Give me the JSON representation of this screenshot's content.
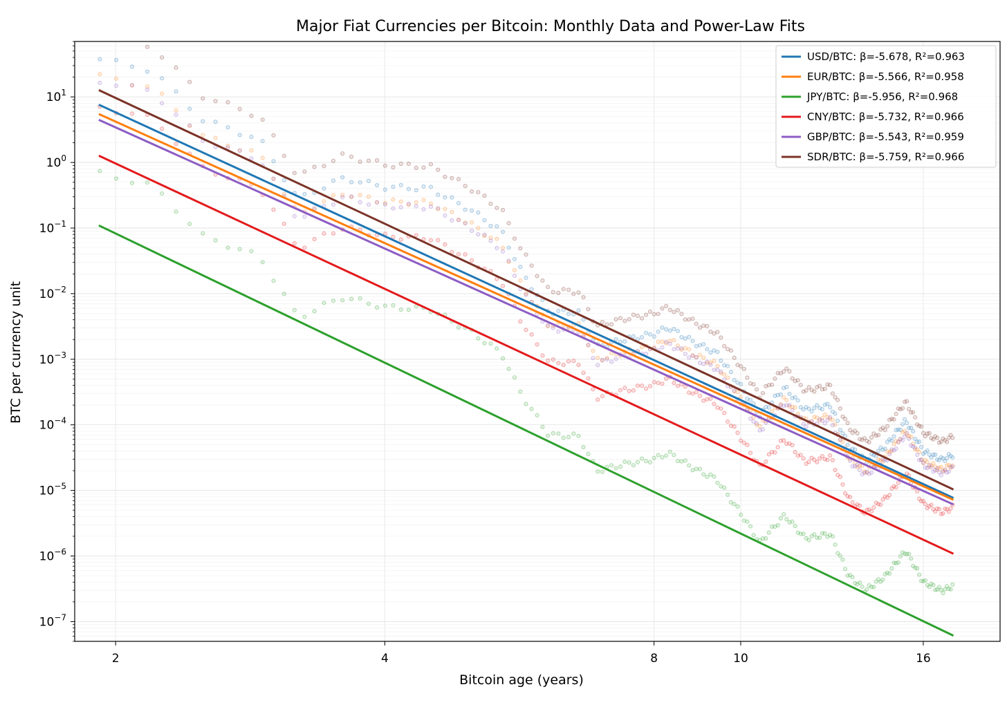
{
  "chart_data": {
    "type": "line",
    "title": "Major Fiat Currencies per Bitcoin: Monthly Data and Power-Law Fits",
    "xlabel": "Bitcoin age (years)",
    "ylabel": "BTC per currency unit",
    "x_scale": "log",
    "y_scale": "log",
    "xlim": [
      1.8,
      19.5
    ],
    "ylim": [
      5e-08,
      70
    ],
    "x_ticks": [
      {
        "value": 2,
        "label": "2"
      },
      {
        "value": 4,
        "label": "4"
      },
      {
        "value": 8,
        "label": "8"
      },
      {
        "value": 10,
        "label": "10"
      },
      {
        "value": 16,
        "label": "16"
      }
    ],
    "y_ticks": [
      {
        "value": 1e-07,
        "base": "10",
        "exp": "−7"
      },
      {
        "value": 1e-06,
        "base": "10",
        "exp": "−6"
      },
      {
        "value": 1e-05,
        "base": "10",
        "exp": "−5"
      },
      {
        "value": 0.0001,
        "base": "10",
        "exp": "−4"
      },
      {
        "value": 0.001,
        "base": "10",
        "exp": "−3"
      },
      {
        "value": 0.01,
        "base": "10",
        "exp": "−2"
      },
      {
        "value": 0.1,
        "base": "10",
        "exp": "−1"
      },
      {
        "value": 1,
        "base": "10",
        "exp": "0"
      },
      {
        "value": 10,
        "base": "10",
        "exp": "1"
      }
    ],
    "grid": true,
    "legend_position": "top-right",
    "fit_x_range": [
      1.92,
      17.25
    ],
    "series": [
      {
        "name": "USD/BTC: β=-5.678, R²=0.963",
        "color": "#1f77b4",
        "fit_start": 7.5,
        "fit_end": 7.8e-06,
        "offset": 0.4
      },
      {
        "name": "EUR/BTC: β=-5.566, R²=0.958",
        "color": "#ff7f0e",
        "fit_start": 5.4,
        "fit_end": 7.3e-06,
        "offset": 0.28
      },
      {
        "name": "JPY/BTC: β=-5.956, R²=0.968",
        "color": "#2ca02c",
        "fit_start": 0.108,
        "fit_end": 6.2e-08,
        "offset": 0.5
      },
      {
        "name": "CNY/BTC: β=-5.732, R²=0.966",
        "color": "#e31a1c",
        "fit_start": 1.25,
        "fit_end": 1.1e-06,
        "offset": 0.45
      },
      {
        "name": "GBP/BTC: β=-5.543, R²=0.959",
        "color": "#8c5cc4",
        "fit_start": 4.4,
        "fit_end": 6.2e-06,
        "offset": 0.3
      },
      {
        "name": "SDR/BTC: β=-5.759, R²=0.966",
        "color": "#7b3328",
        "fit_start": 12.5,
        "fit_end": 1.05e-05,
        "offset": 0.55
      }
    ],
    "residual_anchors": [
      {
        "x": 1.92,
        "r": 0.3
      },
      {
        "x": 2.2,
        "r": 0.5
      },
      {
        "x": 2.5,
        "r": 0.1
      },
      {
        "x": 2.9,
        "r": 0.2
      },
      {
        "x": 3.2,
        "r": -0.45
      },
      {
        "x": 3.4,
        "r": -0.1
      },
      {
        "x": 3.6,
        "r": 0.2
      },
      {
        "x": 4.0,
        "r": 0.35
      },
      {
        "x": 4.5,
        "r": 0.65
      },
      {
        "x": 5.0,
        "r": 0.6
      },
      {
        "x": 5.4,
        "r": 0.5
      },
      {
        "x": 5.7,
        "r": 0.0
      },
      {
        "x": 6.1,
        "r": -0.4
      },
      {
        "x": 6.6,
        "r": -0.2
      },
      {
        "x": 6.9,
        "r": -0.6
      },
      {
        "x": 7.4,
        "r": -0.3
      },
      {
        "x": 8.0,
        "r": 0.0
      },
      {
        "x": 8.3,
        "r": 0.2
      },
      {
        "x": 8.9,
        "r": 0.15
      },
      {
        "x": 9.4,
        "r": 0.15
      },
      {
        "x": 10.1,
        "r": -0.25
      },
      {
        "x": 10.5,
        "r": -0.5
      },
      {
        "x": 11.2,
        "r": 0.1
      },
      {
        "x": 11.8,
        "r": -0.1
      },
      {
        "x": 12.6,
        "r": 0.15
      },
      {
        "x": 13.2,
        "r": -0.35
      },
      {
        "x": 13.8,
        "r": -0.45
      },
      {
        "x": 14.5,
        "r": -0.1
      },
      {
        "x": 15.3,
        "r": 0.45
      },
      {
        "x": 16.0,
        "r": 0.1
      },
      {
        "x": 16.8,
        "r": 0.1
      },
      {
        "x": 17.25,
        "r": 0.25
      }
    ]
  }
}
